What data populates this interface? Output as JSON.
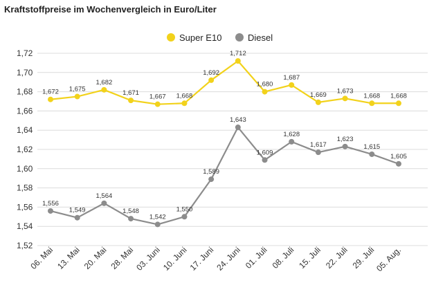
{
  "chart_data": {
    "type": "line",
    "title": "Kraftstoffpreise im Wochenvergleich in Euro/Liter",
    "xlabel": "",
    "ylabel": "",
    "categories": [
      "06. Mai",
      "13. Mai",
      "20. Mai",
      "28. Mai",
      "03. Juni",
      "10. Juni",
      "17. Juni",
      "24. Juni",
      "01. Juli",
      "08. Juli",
      "15. Juli",
      "22. Juli",
      "29. Juli",
      "05. Aug."
    ],
    "yticks": [
      "1,52",
      "1,54",
      "1,56",
      "1,58",
      "1,60",
      "1,62",
      "1,64",
      "1,66",
      "1,68",
      "1,70",
      "1,72"
    ],
    "ylim": [
      1.52,
      1.72
    ],
    "grid": true,
    "legend_position": "top-center",
    "series": [
      {
        "name": "Super E10",
        "color": "#f2d21b",
        "values": [
          1.672,
          1.675,
          1.682,
          1.671,
          1.667,
          1.668,
          1.692,
          1.712,
          1.68,
          1.687,
          1.669,
          1.673,
          1.668,
          1.668
        ],
        "labels": [
          "1,672",
          "1,675",
          "1,682",
          "1,671",
          "1,667",
          "1,668",
          "1,692",
          "1,712",
          "1,680",
          "1,687",
          "1,669",
          "1,673",
          "1,668",
          "1,668"
        ]
      },
      {
        "name": "Diesel",
        "color": "#8c8c8c",
        "values": [
          1.556,
          1.549,
          1.564,
          1.548,
          1.542,
          1.55,
          1.589,
          1.643,
          1.609,
          1.628,
          1.617,
          1.623,
          1.615,
          1.605
        ],
        "labels": [
          "1,556",
          "1,549",
          "1,564",
          "1,548",
          "1,542",
          "1,550",
          "1,589",
          "1,643",
          "1,609",
          "1,628",
          "1,617",
          "1,623",
          "1,615",
          "1,605"
        ]
      }
    ]
  }
}
